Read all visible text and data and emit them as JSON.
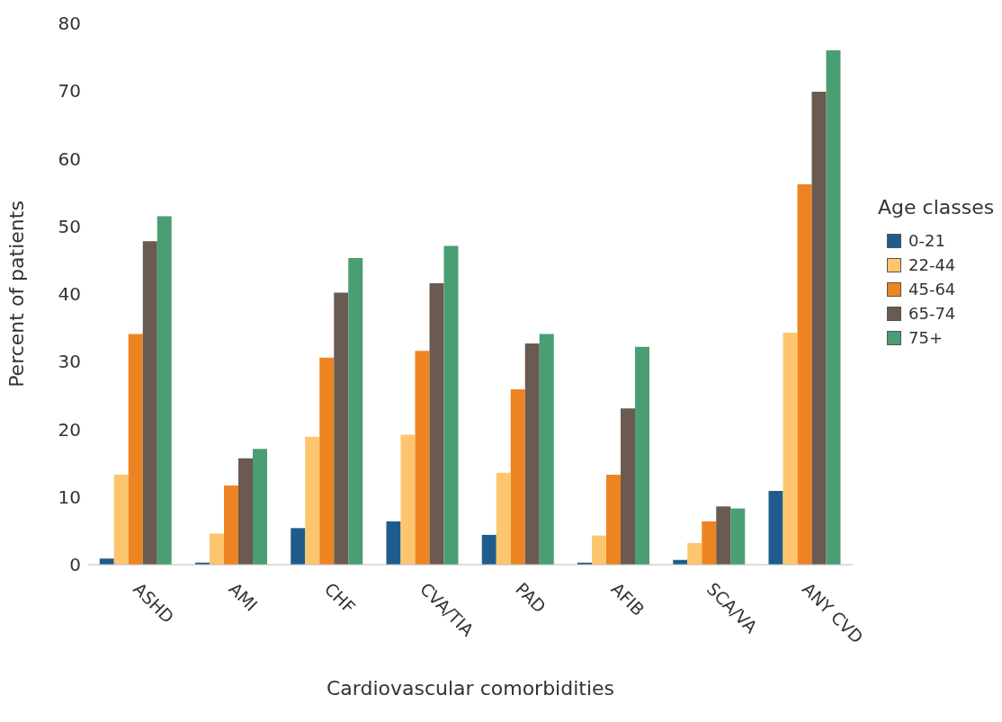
{
  "chart_data": {
    "type": "bar",
    "xlabel": "Cardiovascular comorbidities",
    "ylabel": "Percent of patients",
    "legend_title": "Age classes",
    "legend": "right",
    "grid": false,
    "categories": [
      "ASHD",
      "AMI",
      "CHF",
      "CVA/TIA",
      "PAD",
      "AFIB",
      "SCA/VA",
      "ANY CVD"
    ],
    "ylim": [
      0,
      80
    ],
    "yticks": [
      0,
      10,
      20,
      30,
      40,
      50,
      60,
      70,
      80
    ],
    "series": [
      {
        "name": "0-21",
        "color": "#1f5c8b",
        "values": [
          0.9,
          0.3,
          5.4,
          6.4,
          4.4,
          0.3,
          0.7,
          10.9
        ]
      },
      {
        "name": "22-44",
        "color": "#fdc66e",
        "values": [
          13.3,
          4.6,
          18.9,
          19.2,
          13.6,
          4.3,
          3.2,
          34.3
        ]
      },
      {
        "name": "45-64",
        "color": "#ee8421",
        "values": [
          34.1,
          11.7,
          30.6,
          31.6,
          25.9,
          13.3,
          6.4,
          56.2
        ]
      },
      {
        "name": "65-74",
        "color": "#6a5a50",
        "values": [
          47.8,
          15.7,
          40.2,
          41.6,
          32.7,
          23.1,
          8.6,
          69.9
        ]
      },
      {
        "name": "75+",
        "color": "#4a9e74",
        "values": [
          51.5,
          17.1,
          45.3,
          47.1,
          34.1,
          32.2,
          8.3,
          76.0
        ]
      }
    ]
  }
}
